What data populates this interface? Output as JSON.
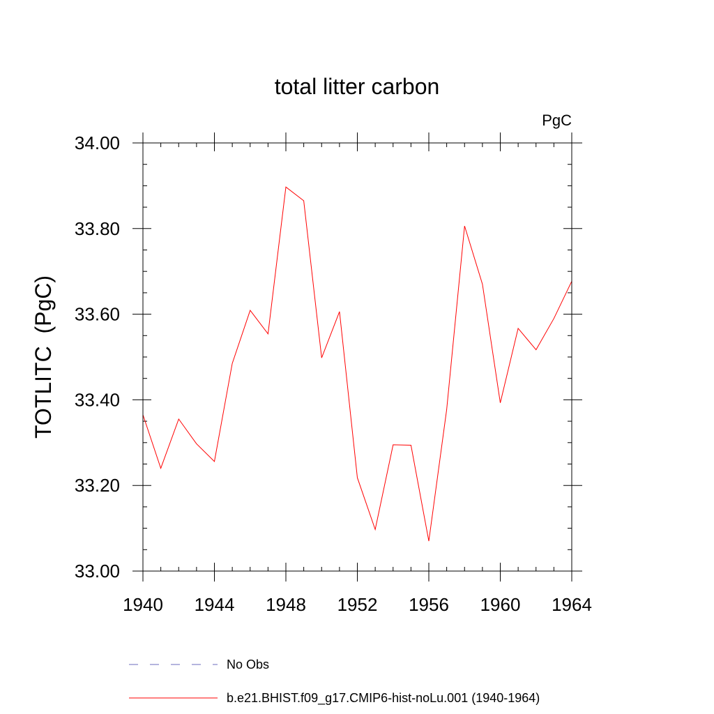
{
  "chart_data": {
    "type": "line",
    "title": "total litter carbon",
    "units_label": "PgC",
    "ylabel": "TOTLITC  (PgC)",
    "xlabel": "",
    "xlim": [
      1940,
      1964
    ],
    "ylim": [
      33.0,
      34.0
    ],
    "x_ticks": [
      1940,
      1944,
      1948,
      1952,
      1956,
      1960,
      1964
    ],
    "x_tick_labels": [
      "1940",
      "1944",
      "1948",
      "1952",
      "1956",
      "1960",
      "1964"
    ],
    "y_ticks": [
      33.0,
      33.2,
      33.4,
      33.6,
      33.8,
      34.0
    ],
    "y_tick_labels": [
      "33.00",
      "33.20",
      "33.40",
      "33.60",
      "33.80",
      "34.00"
    ],
    "grid": false,
    "legend_position": "bottom",
    "series": [
      {
        "name": "b.e21.BHIST.f09_g17.CMIP6-hist-noLu.001 (1940-1964)",
        "color": "#ff0000",
        "line_style": "solid",
        "x": [
          1940,
          1941,
          1942,
          1943,
          1944,
          1945,
          1946,
          1947,
          1948,
          1949,
          1950,
          1951,
          1952,
          1953,
          1954,
          1955,
          1956,
          1957,
          1958,
          1959,
          1960,
          1961,
          1962,
          1963,
          1964
        ],
        "y": [
          33.365,
          33.24,
          33.355,
          33.297,
          33.256,
          33.485,
          33.609,
          33.554,
          33.897,
          33.865,
          33.498,
          33.606,
          33.218,
          33.097,
          33.295,
          33.294,
          33.07,
          33.377,
          33.806,
          33.67,
          33.393,
          33.567,
          33.517,
          33.59,
          33.677
        ]
      }
    ],
    "legend": [
      {
        "label": "No Obs",
        "color": "#6b6bbd",
        "line_style": "dashed"
      },
      {
        "label": "b.e21.BHIST.f09_g17.CMIP6-hist-noLu.001 (1940-1964)",
        "color": "#ff0000",
        "line_style": "solid"
      }
    ]
  }
}
